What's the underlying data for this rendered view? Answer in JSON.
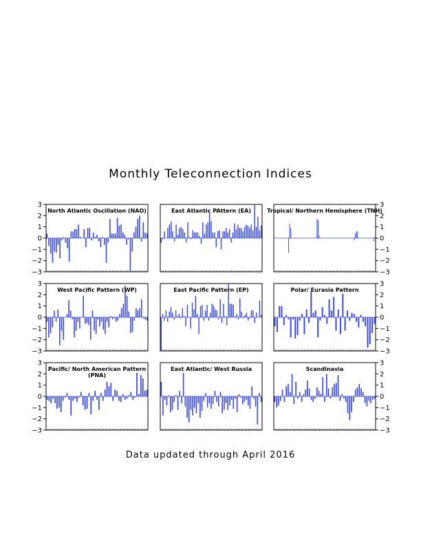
{
  "page": {
    "title": "Monthly Teleconnection Indices",
    "footer": "Data updated through April 2016"
  },
  "bar_color": "#3347ff",
  "chart_data": [
    {
      "type": "bar",
      "title": "North Atlantic Oscillation (NAO)",
      "ylim": [
        -3,
        3
      ],
      "yticks": [
        -3,
        -2,
        -1,
        0,
        1,
        2,
        3
      ],
      "axis_side": "left",
      "values": [
        0.4,
        -0.7,
        -1.4,
        -2.2,
        -1.2,
        -1.3,
        -0.6,
        -1.8,
        -0.2,
        0.1,
        -0.4,
        -0.9,
        -2.1,
        0.6,
        0.6,
        0.8,
        0.8,
        1.2,
        0.1,
        0.0,
        0.8,
        -0.8,
        0.9,
        0.9,
        -0.2,
        0.5,
        0.1,
        0.3,
        -0.3,
        -0.8,
        0.1,
        -0.6,
        -2.2,
        -0.4,
        1.7,
        0.4,
        0.4,
        0.4,
        1.8,
        1.1,
        1.2,
        0.5,
        0.3,
        -0.6,
        -0.1,
        -2.9,
        -1.2,
        0.5,
        1.0,
        1.7,
        2.0,
        -0.3,
        1.4,
        0.5,
        0.4
      ]
    },
    {
      "type": "bar",
      "title": "East Atlantic PAttern (EA)",
      "ylim": [
        -3,
        3
      ],
      "yticks": [
        -3,
        -2,
        -1,
        0,
        1,
        2,
        3
      ],
      "axis_side": "none",
      "values": [
        -0.4,
        -0.1,
        0.6,
        0.0,
        0.9,
        1.2,
        1.5,
        0.6,
        -0.3,
        1.2,
        0.3,
        0.9,
        1.0,
        0.8,
        0.5,
        -0.4,
        1.4,
        0.1,
        -0.1,
        0.7,
        0.5,
        0.5,
        0.5,
        0.2,
        -0.5,
        1.4,
        0.4,
        1.2,
        1.4,
        2.3,
        1.5,
        0.5,
        0.5,
        -0.8,
        0.6,
        0.7,
        -1.0,
        0.6,
        0.6,
        0.9,
        0.5,
        0.8,
        -0.4,
        0.5,
        1.3,
        0.8,
        1.2,
        0.9,
        0.9,
        0.6,
        1.0,
        1.2,
        1.1,
        0.9,
        1.2,
        0.7,
        3.0,
        1.0,
        1.9,
        0.7,
        1.1
      ]
    },
    {
      "type": "bar",
      "title": "Tropical/ Northern Hemisphere (TNH)",
      "ylim": [
        -3,
        3
      ],
      "yticks": [
        -3,
        -2,
        -1,
        0,
        1,
        2,
        3
      ],
      "axis_side": "right",
      "values": [
        0,
        0,
        0,
        0,
        0,
        0,
        0,
        0,
        0,
        0,
        0,
        0,
        0,
        -1.3,
        1.3,
        0.9,
        0,
        0,
        0,
        0,
        0,
        0,
        0,
        0,
        0,
        0,
        0,
        0,
        0,
        0,
        0,
        0,
        0,
        0,
        0,
        0,
        0,
        0,
        0,
        1.7,
        1.6,
        0.2,
        0,
        0,
        0,
        0,
        0,
        0,
        0,
        0,
        0,
        0,
        0,
        0,
        0,
        0,
        0,
        0,
        0,
        0,
        0,
        0,
        0,
        0,
        0,
        0,
        0,
        0,
        0,
        0,
        0,
        0,
        0,
        -0.2,
        0.4,
        0.6,
        0.6,
        0,
        0,
        0,
        0,
        0,
        0,
        0,
        0,
        0,
        0,
        0,
        0,
        0,
        0,
        -0.3,
        0.1
      ]
    },
    {
      "type": "bar",
      "title": "West Pacific Pattern (WP)",
      "ylim": [
        -3,
        3
      ],
      "yticks": [
        -3,
        -2,
        -1,
        0,
        1,
        2,
        3
      ],
      "axis_side": "left",
      "values": [
        -0.4,
        -1.8,
        -1.4,
        -0.9,
        0.6,
        -0.4,
        0.7,
        -2.5,
        -1.2,
        -2.0,
        0.0,
        0.3,
        1.5,
        0.6,
        -0.2,
        -1.8,
        -1.2,
        -0.4,
        -1.0,
        0.0,
        1.9,
        -0.6,
        -0.5,
        -0.7,
        -2.0,
        0.6,
        -1.2,
        -1.5,
        -0.2,
        -0.8,
        -0.4,
        -1.1,
        -1.5,
        -0.4,
        -0.9,
        0.1,
        -0.2,
        -0.1,
        -0.4,
        -0.3,
        0.3,
        0.8,
        1.2,
        2.8,
        1.9,
        0.5,
        -1.4,
        -1.3,
        -0.3,
        0.8,
        0.6,
        0.8,
        1.6,
        -0.1,
        -0.2,
        -0.3
      ]
    },
    {
      "type": "bar",
      "title": "East Pacific Pattern (EP)",
      "ylim": [
        -3,
        3
      ],
      "yticks": [
        -3,
        -2,
        -1,
        0,
        1,
        2,
        3
      ],
      "axis_side": "none",
      "values": [
        -3.0,
        0.3,
        -0.3,
        0.6,
        -0.4,
        0.5,
        0.9,
        0.4,
        -0.2,
        0.6,
        0.1,
        0.3,
        -0.1,
        0.8,
        0.1,
        -0.8,
        1.1,
        0.0,
        -1.0,
        1.3,
        0.7,
        1.9,
        0.3,
        -1.5,
        1.0,
        1.1,
        -0.3,
        0.6,
        1.1,
        -0.3,
        0.4,
        1.2,
        1.0,
        0.7,
        0.6,
        -0.2,
        1.6,
        -0.5,
        1.2,
        0.1,
        -0.7,
        3.0,
        1.2,
        1.2,
        1.1,
        0.1,
        0.3,
        -0.2,
        1.7,
        0.5,
        -0.1,
        0.2,
        0.4,
        -0.3,
        -0.1,
        0.6,
        0.6,
        -0.5,
        0.4,
        0.0,
        1.5,
        0.2
      ]
    },
    {
      "type": "bar",
      "title": "Polar/ Eurasia Pattern",
      "ylim": [
        -3,
        3
      ],
      "yticks": [
        -3,
        -2,
        -1,
        0,
        1,
        2,
        3
      ],
      "axis_side": "right",
      "values": [
        -0.8,
        -1.3,
        1.0,
        1.0,
        -0.7,
        0.2,
        -0.2,
        -1.8,
        -0.2,
        -1.9,
        -1.6,
        -0.3,
        0.3,
        -1.5,
        0.7,
        -0.5,
        2.3,
        0.4,
        0.6,
        -1.8,
        -0.3,
        0.9,
        0.2,
        -0.6,
        1.6,
        0.6,
        1.8,
        -1.2,
        0.7,
        -1.5,
        2.1,
        -1.2,
        0.6,
        -0.3,
        0.4,
        0.3,
        -0.4,
        -0.9,
        0.2,
        -0.4,
        -0.8,
        -2.7,
        -2.4,
        -1.4,
        -0.6
      ]
    },
    {
      "type": "bar",
      "title": "Pacific/ North American Pattern (PNA)",
      "ylim": [
        -3,
        3
      ],
      "yticks": [
        -3,
        -2,
        -1,
        0,
        1,
        2,
        3
      ],
      "axis_side": "left",
      "values": [
        -0.3,
        -0.4,
        -0.6,
        -0.2,
        -0.6,
        -1.1,
        -1.0,
        -1.4,
        -0.4,
        -0.1,
        0.3,
        -0.3,
        -1.7,
        -0.4,
        -0.2,
        -0.5,
        -0.1,
        0.4,
        -0.8,
        -1.2,
        -1.1,
        0.3,
        -1.6,
        -0.4,
        0.5,
        -0.3,
        -1.2,
        0.3,
        -0.4,
        0.6,
        1.3,
        0.9,
        1.2,
        -0.4,
        0.6,
        0.5,
        -0.4,
        -0.5,
        0.2,
        -0.3,
        -0.2,
        0.1,
        0.4,
        -0.3,
        -0.1,
        2.1,
        0.2,
        1.9,
        1.6,
        0.5,
        0.6
      ]
    },
    {
      "type": "bar",
      "title": "East Atlantic/ West Russia",
      "ylim": [
        -3,
        3
      ],
      "yticks": [
        -3,
        -2,
        -1,
        0,
        1,
        2,
        3
      ],
      "axis_side": "none",
      "values": [
        1.3,
        -1.7,
        -0.3,
        -0.8,
        0.1,
        -1.4,
        -1.2,
        -0.5,
        0.1,
        -1.2,
        0.5,
        -0.6,
        2.1,
        -0.9,
        -1.9,
        -2.3,
        -1.2,
        -1.7,
        -1.0,
        -1.5,
        -0.6,
        -1.9,
        -1.3,
        -0.4,
        0.3,
        -1.0,
        -0.6,
        -1.1,
        -0.7,
        0.5,
        -0.5,
        -0.9,
        0.4,
        -1.5,
        -1.2,
        -0.6,
        -1.2,
        -0.8,
        -0.3,
        -1.1,
        -0.2,
        -1.4,
        0.2,
        -0.1,
        -0.7,
        -0.5,
        -0.3,
        -0.8,
        -1.1,
        0.9,
        -0.2,
        -0.9,
        -2.5,
        0.3,
        -0.5
      ]
    },
    {
      "type": "bar",
      "title": "Scandinavia",
      "ylim": [
        -3,
        3
      ],
      "yticks": [
        -3,
        -2,
        -1,
        0,
        1,
        2,
        3
      ],
      "axis_side": "right",
      "values": [
        -0.5,
        -1.0,
        -0.8,
        -0.4,
        0.6,
        -0.5,
        0.9,
        1.1,
        0.4,
        2.0,
        -0.7,
        1.3,
        -0.2,
        0.4,
        -0.5,
        0.2,
        0.6,
        1.4,
        0.7,
        -0.3,
        -0.5,
        -0.2,
        0.8,
        0.5,
        0.2,
        1.7,
        -0.5,
        2.0,
        0.7,
        -0.2,
        0.8,
        1.1,
        1.2,
        1.9,
        -0.4,
        0.2,
        -0.2,
        -0.5,
        -1.5,
        -2.1,
        -1.4,
        -0.5,
        0.6,
        0.8,
        1.1,
        0.7,
        0.4,
        -0.6,
        -0.9,
        -0.4,
        -0.6,
        -0.3,
        -0.2
      ]
    }
  ]
}
